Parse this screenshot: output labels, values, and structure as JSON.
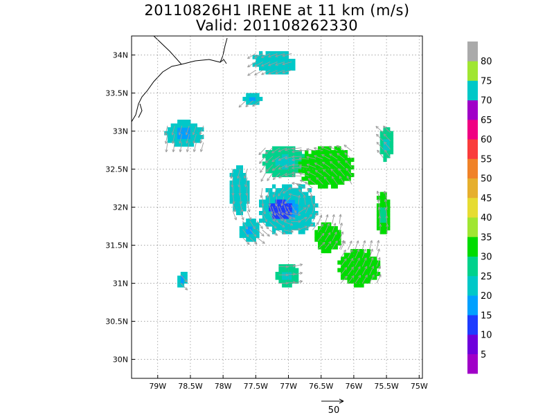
{
  "title": {
    "line1": "20110826H1 IRENE at 11 km (m/s)",
    "line2": "Valid: 201108262330"
  },
  "axes": {
    "lon_range": [
      -79.4,
      -74.95
    ],
    "lat_range": [
      29.75,
      34.25
    ],
    "x_ticks": [
      {
        "value": -79.0,
        "label": "79W"
      },
      {
        "value": -78.5,
        "label": "78.5W"
      },
      {
        "value": -78.0,
        "label": "78W"
      },
      {
        "value": -77.5,
        "label": "77.5W"
      },
      {
        "value": -77.0,
        "label": "77W"
      },
      {
        "value": -76.5,
        "label": "76.5W"
      },
      {
        "value": -76.0,
        "label": "76W"
      },
      {
        "value": -75.5,
        "label": "75.5W"
      },
      {
        "value": -75.0,
        "label": "75W"
      }
    ],
    "y_ticks": [
      {
        "value": 30.0,
        "label": "30N"
      },
      {
        "value": 30.5,
        "label": "30.5N"
      },
      {
        "value": 31.0,
        "label": "31N"
      },
      {
        "value": 31.5,
        "label": "31.5N"
      },
      {
        "value": 32.0,
        "label": "32N"
      },
      {
        "value": 32.5,
        "label": "32.5N"
      },
      {
        "value": 33.0,
        "label": "33N"
      },
      {
        "value": 33.5,
        "label": "33.5N"
      },
      {
        "value": 34.0,
        "label": "34N"
      }
    ],
    "grid": "dotted"
  },
  "colorbar": {
    "labels": [
      "5",
      "10",
      "15",
      "20",
      "25",
      "30",
      "35",
      "40",
      "45",
      "50",
      "55",
      "60",
      "65",
      "70",
      "75",
      "80"
    ],
    "colors": [
      "#a000c8",
      "#6e00dc",
      "#1e3cff",
      "#00a0ff",
      "#00c8c8",
      "#00d28c",
      "#00dc00",
      "#a0e632",
      "#e6dc32",
      "#e6af2d",
      "#f08228",
      "#fa3c3c",
      "#f00082",
      "#a000c8",
      "#00c8c8",
      "#a0e632",
      "#aaaaaa"
    ]
  },
  "reference_vector": {
    "label": "50"
  },
  "chart_data": {
    "type": "heatmap",
    "field": "wind speed",
    "units": "m/s",
    "regions": [
      {
        "lon": [
          -77.55,
          -76.9
        ],
        "lat": [
          33.75,
          34.05
        ],
        "value": 24
      },
      {
        "lon": [
          -77.7,
          -77.4
        ],
        "lat": [
          33.35,
          33.5
        ],
        "value": 22
      },
      {
        "lon": [
          -78.9,
          -78.3
        ],
        "lat": [
          32.8,
          33.15
        ],
        "value": 20
      },
      {
        "lon": [
          -77.9,
          -77.6
        ],
        "lat": [
          31.9,
          32.55
        ],
        "value": 23
      },
      {
        "lon": [
          -77.4,
          -76.7
        ],
        "lat": [
          32.4,
          32.8
        ],
        "value": 25
      },
      {
        "lon": [
          -77.45,
          -76.55
        ],
        "lat": [
          31.65,
          32.3
        ],
        "value": 21
      },
      {
        "lon": [
          -77.3,
          -76.95
        ],
        "lat": [
          31.85,
          32.1
        ],
        "value": 13
      },
      {
        "lon": [
          -76.85,
          -76.0
        ],
        "lat": [
          32.25,
          32.8
        ],
        "value": 33
      },
      {
        "lon": [
          -75.6,
          -75.4
        ],
        "lat": [
          32.6,
          33.05
        ],
        "value": 27
      },
      {
        "lon": [
          -75.65,
          -75.45
        ],
        "lat": [
          31.6,
          32.2
        ],
        "value": 31
      },
      {
        "lon": [
          -76.6,
          -76.2
        ],
        "lat": [
          31.4,
          31.8
        ],
        "value": 34
      },
      {
        "lon": [
          -76.25,
          -75.6
        ],
        "lat": [
          30.95,
          31.45
        ],
        "value": 34
      },
      {
        "lon": [
          -77.2,
          -76.85
        ],
        "lat": [
          30.95,
          31.25
        ],
        "value": 25
      },
      {
        "lon": [
          -77.75,
          -77.45
        ],
        "lat": [
          31.55,
          31.85
        ],
        "value": 21
      },
      {
        "lon": [
          -78.7,
          -78.55
        ],
        "lat": [
          30.95,
          31.15
        ],
        "value": 20
      }
    ]
  }
}
